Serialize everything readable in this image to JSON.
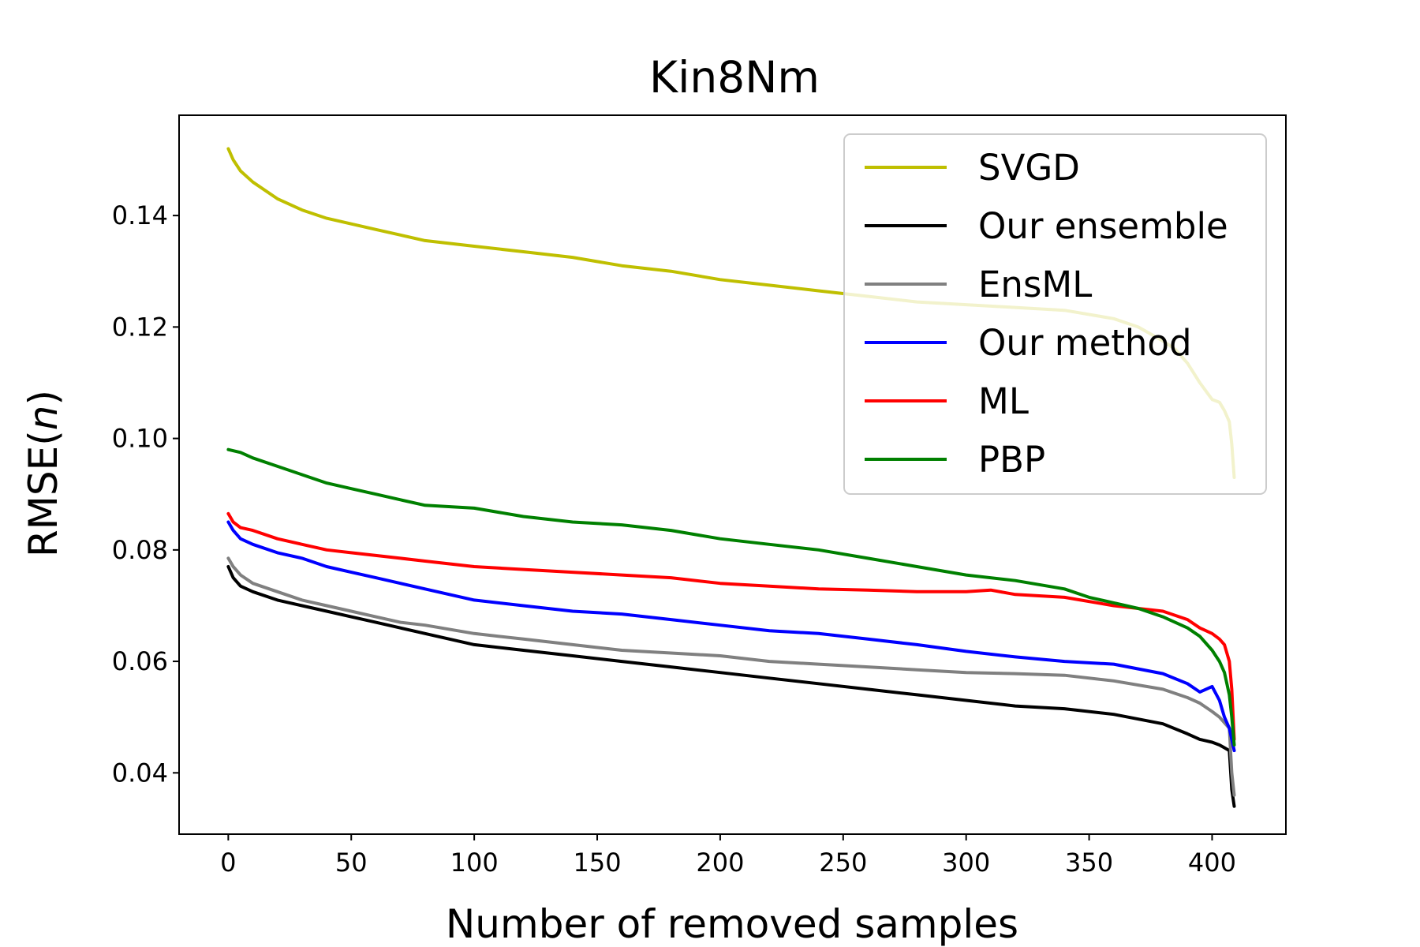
{
  "chart_data": {
    "type": "line",
    "title": "Kin8Nm",
    "xlabel": "Number of removed samples",
    "ylabel_text": "RMSE(",
    "ylabel_var": "n",
    "ylabel_close": ")",
    "xlim": [
      -20,
      430
    ],
    "ylim": [
      0.029,
      0.158
    ],
    "xticks": [
      0,
      50,
      100,
      150,
      200,
      250,
      300,
      350,
      400
    ],
    "xtick_labels": [
      "0",
      "50",
      "100",
      "150",
      "200",
      "250",
      "300",
      "350",
      "400"
    ],
    "yticks": [
      0.04,
      0.06,
      0.08,
      0.1,
      0.12,
      0.14
    ],
    "ytick_labels": [
      "0.04",
      "0.06",
      "0.08",
      "0.10",
      "0.12",
      "0.14"
    ],
    "legend_position": "top-right",
    "series": [
      {
        "name": "SVGD",
        "color": "#bfbf00",
        "x": [
          0,
          2,
          5,
          10,
          20,
          30,
          40,
          50,
          60,
          70,
          80,
          100,
          120,
          140,
          160,
          180,
          200,
          220,
          240,
          260,
          280,
          300,
          320,
          340,
          360,
          370,
          380,
          385,
          390,
          395,
          400,
          403,
          405,
          407,
          408,
          409
        ],
        "y": [
          0.152,
          0.15,
          0.148,
          0.146,
          0.143,
          0.141,
          0.1395,
          0.1385,
          0.1375,
          0.1365,
          0.1355,
          0.1345,
          0.1335,
          0.1325,
          0.131,
          0.13,
          0.1285,
          0.1275,
          0.1265,
          0.1255,
          0.1245,
          0.124,
          0.1235,
          0.123,
          0.1215,
          0.12,
          0.1175,
          0.116,
          0.1135,
          0.11,
          0.107,
          0.1065,
          0.105,
          0.103,
          0.099,
          0.093
        ]
      },
      {
        "name": "Our ensemble",
        "color": "#000000",
        "x": [
          0,
          2,
          5,
          10,
          20,
          30,
          40,
          50,
          60,
          70,
          80,
          100,
          120,
          140,
          160,
          180,
          200,
          220,
          240,
          260,
          280,
          300,
          320,
          340,
          360,
          380,
          390,
          395,
          400,
          403,
          405,
          407,
          408,
          409
        ],
        "y": [
          0.077,
          0.075,
          0.0735,
          0.0725,
          0.071,
          0.07,
          0.069,
          0.068,
          0.067,
          0.066,
          0.065,
          0.063,
          0.062,
          0.061,
          0.06,
          0.059,
          0.058,
          0.057,
          0.056,
          0.055,
          0.054,
          0.053,
          0.052,
          0.0515,
          0.0505,
          0.0488,
          0.047,
          0.046,
          0.0455,
          0.045,
          0.0445,
          0.044,
          0.037,
          0.034
        ]
      },
      {
        "name": "EnsML",
        "color": "#808080",
        "x": [
          0,
          2,
          5,
          10,
          20,
          30,
          40,
          50,
          60,
          70,
          80,
          100,
          120,
          140,
          160,
          180,
          200,
          220,
          240,
          260,
          280,
          300,
          320,
          340,
          360,
          380,
          390,
          395,
          400,
          403,
          405,
          407,
          408,
          409
        ],
        "y": [
          0.0785,
          0.077,
          0.0755,
          0.074,
          0.0725,
          0.071,
          0.07,
          0.069,
          0.068,
          0.067,
          0.0665,
          0.065,
          0.064,
          0.063,
          0.062,
          0.0615,
          0.061,
          0.06,
          0.0595,
          0.059,
          0.0585,
          0.058,
          0.0578,
          0.0575,
          0.0565,
          0.055,
          0.0535,
          0.0525,
          0.051,
          0.05,
          0.049,
          0.048,
          0.04,
          0.036
        ]
      },
      {
        "name": "Our method",
        "color": "#0000ff",
        "x": [
          0,
          2,
          5,
          10,
          20,
          30,
          40,
          50,
          60,
          70,
          80,
          100,
          120,
          140,
          160,
          180,
          200,
          220,
          240,
          260,
          280,
          300,
          320,
          340,
          360,
          380,
          390,
          395,
          400,
          403,
          405,
          407,
          408,
          409
        ],
        "y": [
          0.085,
          0.0835,
          0.082,
          0.081,
          0.0795,
          0.0785,
          0.077,
          0.076,
          0.075,
          0.074,
          0.073,
          0.071,
          0.07,
          0.069,
          0.0685,
          0.0675,
          0.0665,
          0.0655,
          0.065,
          0.064,
          0.063,
          0.0618,
          0.0608,
          0.06,
          0.0595,
          0.0578,
          0.056,
          0.0545,
          0.0555,
          0.053,
          0.05,
          0.048,
          0.046,
          0.044
        ]
      },
      {
        "name": "ML",
        "color": "#ff0000",
        "x": [
          0,
          2,
          5,
          10,
          20,
          30,
          40,
          50,
          60,
          70,
          80,
          100,
          120,
          140,
          160,
          180,
          200,
          220,
          240,
          260,
          280,
          300,
          310,
          320,
          340,
          360,
          380,
          390,
          395,
          400,
          403,
          405,
          407,
          408,
          409
        ],
        "y": [
          0.0865,
          0.085,
          0.084,
          0.0835,
          0.082,
          0.081,
          0.08,
          0.0795,
          0.079,
          0.0785,
          0.078,
          0.077,
          0.0765,
          0.076,
          0.0755,
          0.075,
          0.074,
          0.0735,
          0.073,
          0.0728,
          0.0725,
          0.0725,
          0.0728,
          0.072,
          0.0715,
          0.07,
          0.069,
          0.0675,
          0.066,
          0.065,
          0.064,
          0.063,
          0.06,
          0.055,
          0.046
        ]
      },
      {
        "name": "PBP",
        "color": "#008000",
        "x": [
          0,
          5,
          10,
          20,
          30,
          40,
          50,
          60,
          70,
          80,
          100,
          120,
          140,
          160,
          180,
          200,
          220,
          240,
          260,
          280,
          300,
          320,
          340,
          350,
          360,
          370,
          380,
          390,
          395,
          400,
          403,
          405,
          407,
          408,
          409
        ],
        "y": [
          0.098,
          0.0975,
          0.0965,
          0.095,
          0.0935,
          0.092,
          0.091,
          0.09,
          0.089,
          0.088,
          0.0875,
          0.086,
          0.085,
          0.0845,
          0.0835,
          0.082,
          0.081,
          0.08,
          0.0785,
          0.077,
          0.0755,
          0.0745,
          0.073,
          0.0715,
          0.0705,
          0.0695,
          0.068,
          0.066,
          0.0645,
          0.062,
          0.06,
          0.058,
          0.054,
          0.05,
          0.045
        ]
      }
    ]
  }
}
